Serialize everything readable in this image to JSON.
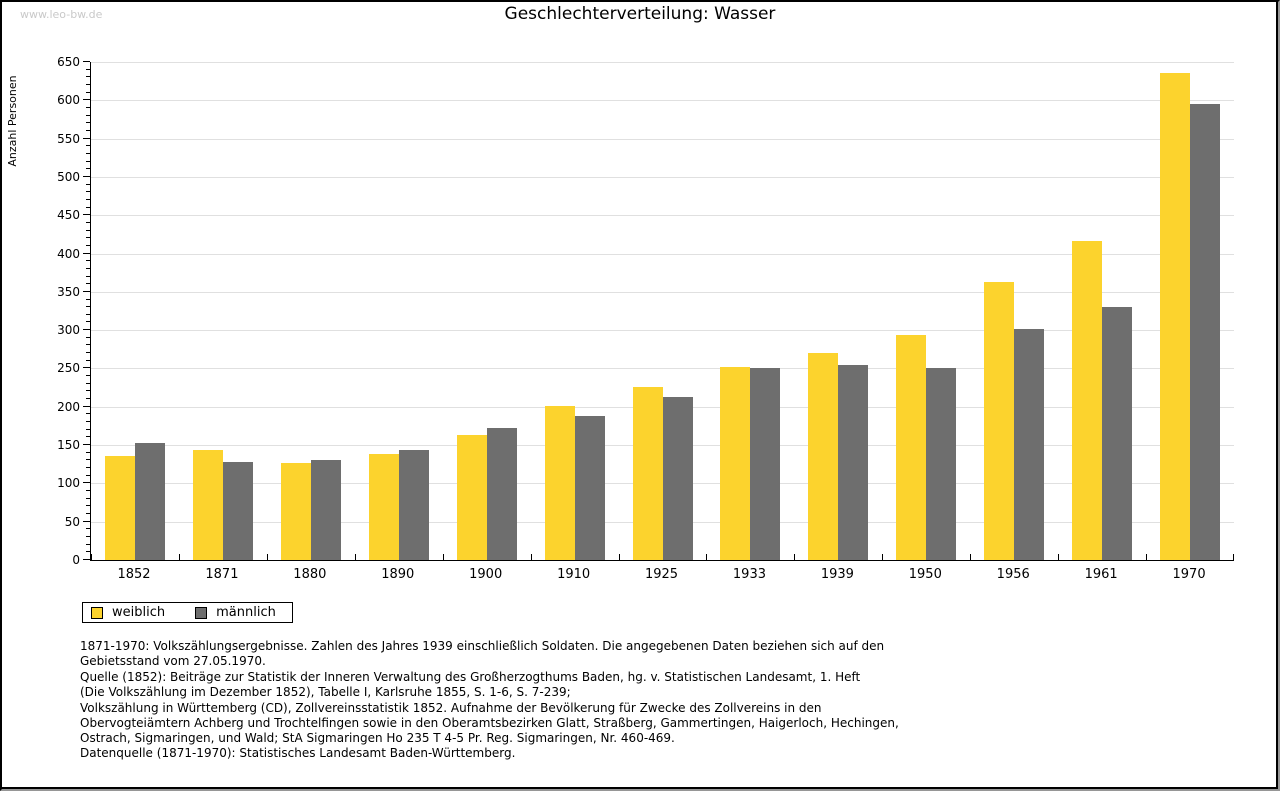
{
  "watermark": "www.leo-bw.de",
  "title": "Geschlechterverteilung: Wasser",
  "legend": {
    "items": [
      {
        "label": "weiblich",
        "color": "#FCD32D"
      },
      {
        "label": "männlich",
        "color": "#6E6E6E"
      }
    ]
  },
  "footnotes": [
    "1871-1970: Volkszählungsergebnisse. Zahlen des Jahres 1939 einschließlich Soldaten. Die angegebenen Daten beziehen sich auf den",
    "Gebietsstand vom 27.05.1970.",
    "Quelle (1852): Beiträge zur Statistik der Inneren Verwaltung des Großherzogthums Baden, hg. v. Statistischen Landesamt, 1. Heft",
    "(Die Volkszählung im Dezember 1852), Tabelle I, Karlsruhe 1855, S. 1-6, S. 7-239;",
    "Volkszählung in Württemberg (CD), Zollvereinsstatistik 1852. Aufnahme der Bevölkerung für Zwecke des Zollvereins in den",
    "Obervogteiämtern Achberg und Trochtelfingen sowie in den Oberamtsbezirken Glatt, Straßberg, Gammertingen, Haigerloch, Hechingen,",
    "Ostrach, Sigmaringen, und Wald; StA Sigmaringen Ho 235 T 4-5 Pr. Reg. Sigmaringen, Nr. 460-469."
  ],
  "source_line": "Datenquelle (1871-1970): Statistisches Landesamt Baden-Württemberg.",
  "chart_data": {
    "type": "bar",
    "title": "Geschlechterverteilung: Wasser",
    "xlabel": "",
    "ylabel": "Anzahl Personen",
    "ylim": [
      0,
      650
    ],
    "ytick_step": 50,
    "ytick_minor_step": 10,
    "grid": true,
    "legend_position": "bottom-left",
    "categories": [
      "1852",
      "1871",
      "1880",
      "1890",
      "1900",
      "1910",
      "1925",
      "1933",
      "1939",
      "1950",
      "1956",
      "1961",
      "1970"
    ],
    "series": [
      {
        "name": "weiblich",
        "color": "#FCD32D",
        "values": [
          136,
          144,
          127,
          139,
          163,
          201,
          226,
          252,
          270,
          294,
          363,
          416,
          636
        ]
      },
      {
        "name": "männlich",
        "color": "#6E6E6E",
        "values": [
          153,
          128,
          130,
          144,
          172,
          188,
          213,
          250,
          255,
          250,
          302,
          330,
          595
        ]
      }
    ]
  }
}
